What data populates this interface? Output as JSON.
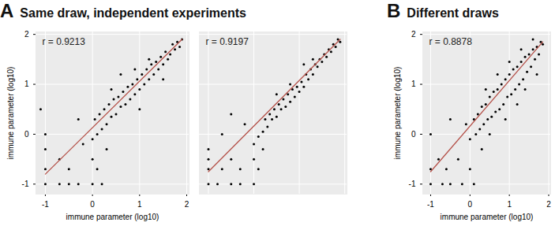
{
  "chart_data": [
    {
      "type": "scatter",
      "panel": "A",
      "title": "Same draw, independent experiments",
      "x_label": "immune parameter (log10)",
      "y_label": "immune parameter (log10)",
      "xlim": [
        -1.2,
        2.05
      ],
      "ylim": [
        -1.2,
        2.05
      ],
      "xticks": [
        -1,
        0,
        1,
        2
      ],
      "yticks": [
        -1,
        0,
        1,
        2
      ],
      "grid": true,
      "color": "#000000",
      "annotation": "r = 0.9213",
      "x": [
        1.8,
        1.75,
        1.7,
        1.65,
        1.6,
        1.55,
        1.5,
        1.45,
        1.4,
        1.35,
        1.3,
        1.25,
        1.2,
        1.15,
        1.1,
        1.05,
        1.0,
        0.95,
        0.9,
        0.85,
        0.8,
        0.75,
        0.7,
        0.65,
        0.6,
        0.55,
        0.5,
        0.45,
        0.4,
        0.35,
        0.3,
        0.25,
        0.2,
        0.15,
        0.1,
        0.05,
        0.0,
        1.9,
        1.85,
        1.2,
        0.9,
        1.5,
        -1,
        -0.7,
        -0.5,
        -0.3,
        0,
        0.2,
        -1,
        -0.5,
        0.1,
        -0.7,
        0,
        -1,
        -1,
        -0.3,
        -1.1,
        0.3,
        -0.2,
        0.4,
        0.6,
        1.0
      ],
      "y": [
        1.85,
        1.7,
        1.8,
        1.6,
        1.5,
        1.65,
        1.4,
        1.55,
        1.3,
        1.45,
        1.2,
        1.4,
        1.1,
        1.3,
        1.0,
        1.2,
        0.9,
        1.1,
        0.8,
        1.0,
        0.7,
        0.95,
        0.6,
        0.85,
        0.55,
        0.75,
        0.4,
        0.7,
        0.35,
        0.6,
        0.2,
        0.5,
        0.1,
        0.4,
        0.0,
        0.3,
        -0.1,
        1.9,
        1.75,
        1.5,
        1.3,
        1.1,
        -1,
        -1,
        -1,
        -1,
        -1,
        -1,
        -0.7,
        -0.7,
        -0.7,
        -0.5,
        -0.5,
        0,
        -0.3,
        0.3,
        0.5,
        -0.3,
        -0.2,
        0.9,
        1.2,
        0.5
      ],
      "fit": {
        "x": [
          -1,
          1.9
        ],
        "y": [
          -0.8,
          1.9
        ],
        "color": "#b5524a"
      }
    },
    {
      "type": "scatter",
      "tick_labels": false,
      "xlim": [
        -1.2,
        2.05
      ],
      "ylim": [
        -1.2,
        2.05
      ],
      "xticks": [
        -1,
        0,
        1,
        2
      ],
      "yticks": [
        -1,
        0,
        1,
        2
      ],
      "grid": true,
      "color": "#000000",
      "annotation": "r = 0.9197",
      "x": [
        1.85,
        1.8,
        1.75,
        1.7,
        1.65,
        1.6,
        1.55,
        1.5,
        1.45,
        1.4,
        1.35,
        1.3,
        1.25,
        1.2,
        1.15,
        1.1,
        1.05,
        1.0,
        0.95,
        0.9,
        0.85,
        0.8,
        0.75,
        0.7,
        0.65,
        0.6,
        0.55,
        0.5,
        0.45,
        0.4,
        0.35,
        0.3,
        0.25,
        0.2,
        0.1,
        0.0,
        1.9,
        1.3,
        0.8,
        -1,
        -0.8,
        -0.5,
        -0.3,
        0,
        -1,
        -0.7,
        -0.3,
        0.1,
        -1,
        -0.5,
        0,
        -1,
        -0.7,
        -0.2,
        0.2,
        -0.5,
        0.5,
        1.1
      ],
      "y": [
        1.9,
        1.75,
        1.8,
        1.65,
        1.7,
        1.55,
        1.6,
        1.45,
        1.5,
        1.35,
        1.4,
        1.2,
        1.3,
        1.1,
        1.2,
        0.95,
        1.05,
        0.85,
        0.95,
        0.75,
        0.9,
        0.65,
        0.8,
        0.55,
        0.7,
        0.5,
        0.6,
        0.35,
        0.5,
        0.3,
        0.4,
        0.15,
        0.3,
        0.05,
        -0.05,
        -0.2,
        1.85,
        1.5,
        1.0,
        -1,
        -1,
        -1,
        -1,
        -1,
        -0.7,
        -0.7,
        -0.7,
        -0.7,
        -0.5,
        -0.5,
        -0.5,
        -0.3,
        0,
        0.2,
        -0.3,
        0.4,
        0.8,
        1.4
      ],
      "fit": {
        "x": [
          -1,
          1.9
        ],
        "y": [
          -0.75,
          1.9
        ],
        "color": "#b5524a"
      }
    },
    {
      "type": "scatter",
      "panel": "B",
      "title": "Different draws",
      "x_label": "immune parameter (log10)",
      "y_label": "immune parameter (log10)",
      "xlim": [
        -1.2,
        2.05
      ],
      "ylim": [
        -1.2,
        2.05
      ],
      "xticks": [
        -1,
        0,
        1,
        2
      ],
      "yticks": [
        -1,
        0,
        1,
        2
      ],
      "grid": true,
      "color": "#000000",
      "annotation": "r = 0.8878",
      "x": [
        1.85,
        1.8,
        1.75,
        1.7,
        1.65,
        1.6,
        1.55,
        1.5,
        1.45,
        1.4,
        1.35,
        1.3,
        1.25,
        1.2,
        1.15,
        1.1,
        1.05,
        1.0,
        0.95,
        0.9,
        0.85,
        0.8,
        0.75,
        0.7,
        0.65,
        0.6,
        0.55,
        0.5,
        0.45,
        0.4,
        0.35,
        0.3,
        0.25,
        0.2,
        0.15,
        0.1,
        0.0,
        -0.1,
        1.6,
        1.3,
        1.0,
        0.7,
        0.4,
        1.7,
        1.4,
        -1,
        -0.7,
        -0.5,
        -0.2,
        0.1,
        -1,
        -0.6,
        0,
        -0.8,
        -0.3,
        -1,
        -0.5,
        0.3,
        0.5,
        0.9,
        1.2
      ],
      "y": [
        1.8,
        1.85,
        1.6,
        1.75,
        1.5,
        1.7,
        1.35,
        1.6,
        1.25,
        1.55,
        1.1,
        1.45,
        1.0,
        1.35,
        0.9,
        1.3,
        0.8,
        1.2,
        0.75,
        1.1,
        0.6,
        1.0,
        0.5,
        0.9,
        0.45,
        0.85,
        0.35,
        0.75,
        0.3,
        0.6,
        0.2,
        0.55,
        0.1,
        0.4,
        0.0,
        0.3,
        -0.1,
        0.2,
        1.9,
        1.7,
        1.45,
        1.2,
        0.9,
        1.2,
        0.9,
        -1,
        -1,
        -1,
        -1,
        -1,
        -0.7,
        -0.7,
        -0.7,
        -0.5,
        -0.5,
        0,
        0.3,
        -0.3,
        0,
        0.3,
        0.6
      ],
      "fit": {
        "x": [
          -1,
          1.85
        ],
        "y": [
          -0.75,
          1.85
        ],
        "color": "#b5524a"
      }
    }
  ]
}
